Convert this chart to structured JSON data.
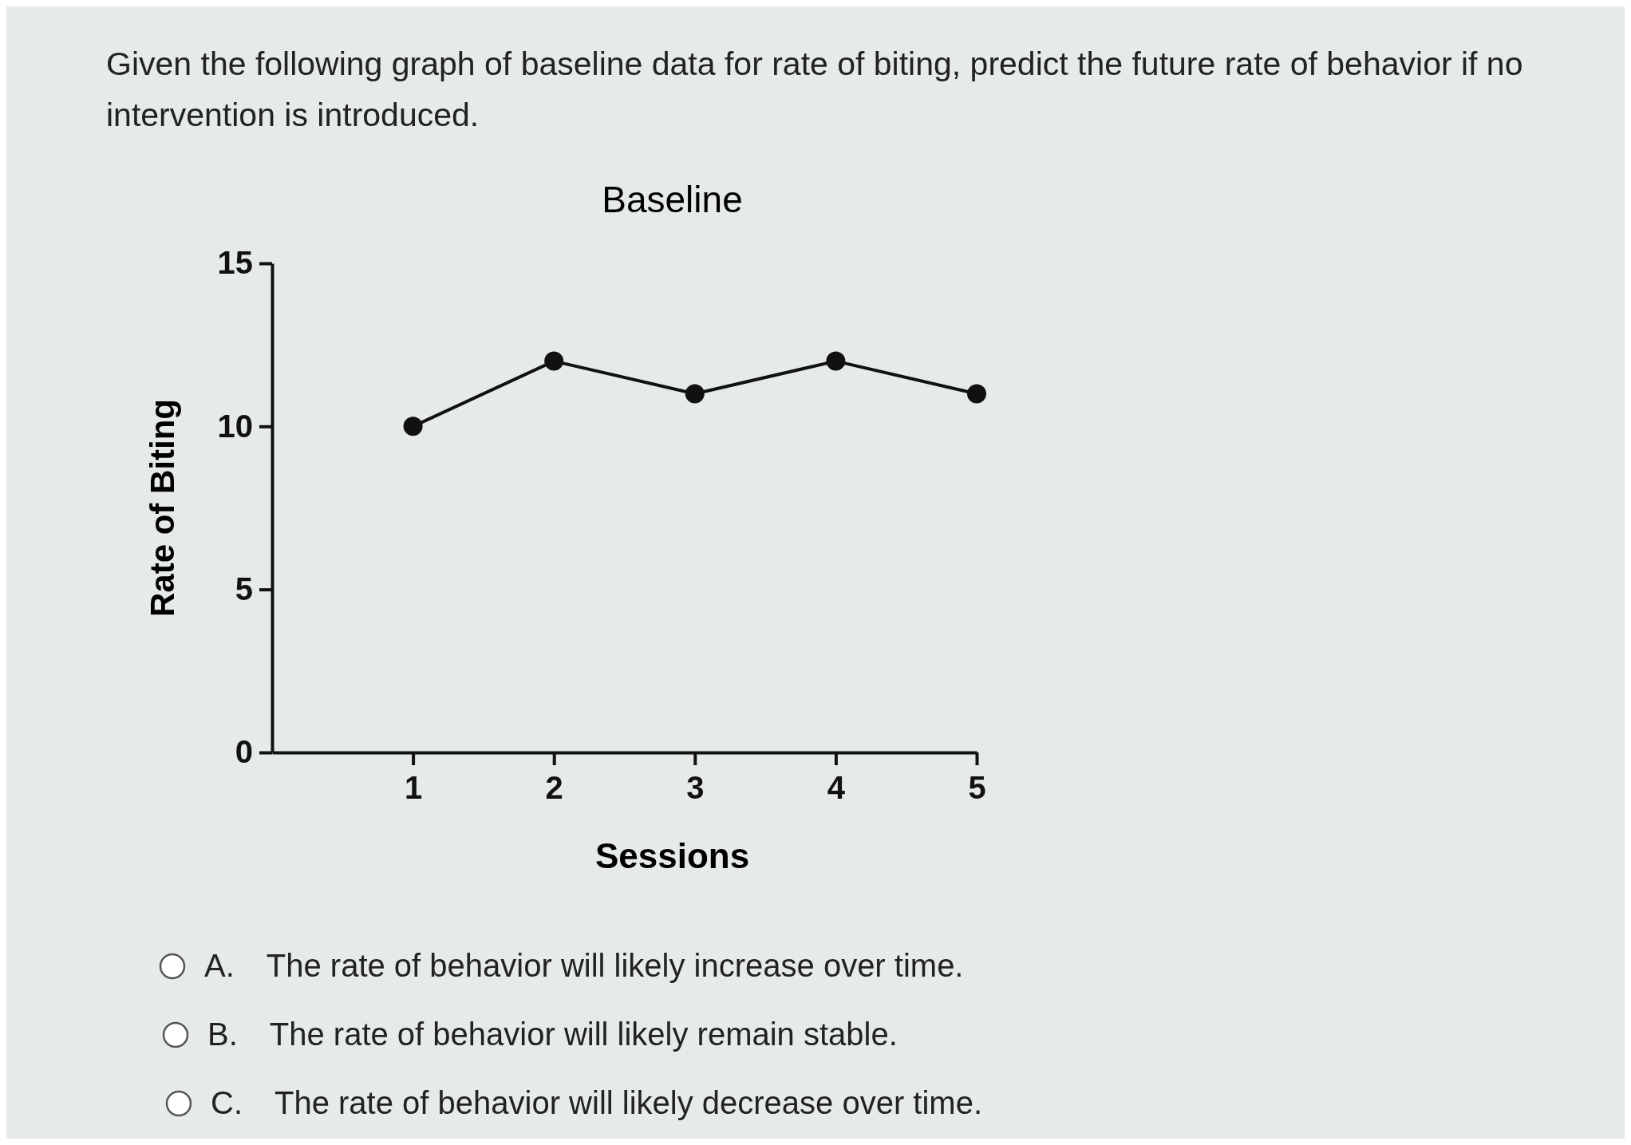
{
  "chart_data": {
    "type": "line",
    "title": "Baseline",
    "xlabel": "Sessions",
    "ylabel": "Rate of Biting",
    "x": [
      1,
      2,
      3,
      4,
      5
    ],
    "series": [
      {
        "color": "#111111",
        "values": [
          10,
          12,
          11,
          12,
          11
        ]
      }
    ],
    "xlim": [
      0,
      5
    ],
    "xticks": [
      1,
      2,
      3,
      4,
      5
    ],
    "ylim": [
      0,
      15
    ],
    "yticks": [
      0,
      5,
      10,
      15
    ],
    "grid": false,
    "marker": "circle",
    "line_style": "solid",
    "annotations": [
      "Given the following graph of baseline data for rate of biting, predict the future rate of behavior if no intervention is introduced.",
      "A. The rate of behavior will likely increase over time.",
      "B. The rate of behavior will likely remain stable.",
      "C. The rate of behavior will likely decrease over time."
    ]
  }
}
